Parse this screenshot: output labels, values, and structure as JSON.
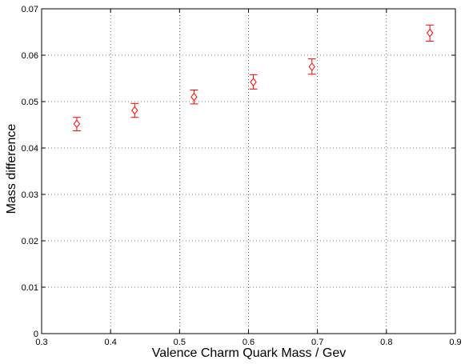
{
  "chart_data": {
    "type": "scatter",
    "title": "",
    "xlabel": "Valence Charm Quark Mass / Gev",
    "ylabel": "Mass difference",
    "xlim": [
      0.3,
      0.9
    ],
    "ylim": [
      0,
      0.07
    ],
    "xticks": [
      0.3,
      0.4,
      0.5,
      0.6,
      0.7,
      0.8,
      0.9
    ],
    "xtick_labels": [
      "0.3",
      "0.4",
      "0.5",
      "0.6",
      "0.7",
      "0.8",
      "0.9"
    ],
    "yticks": [
      0,
      0.01,
      0.02,
      0.03,
      0.04,
      0.05,
      0.06,
      0.07
    ],
    "ytick_labels": [
      "0",
      "0.01",
      "0.02",
      "0.03",
      "0.04",
      "0.05",
      "0.06",
      "0.07"
    ],
    "grid": true,
    "grid_style": "dotted",
    "marker": "diamond",
    "series": [
      {
        "color": "#ff0000",
        "points": [
          {
            "x": 0.351,
            "y": 0.0452,
            "err_low": 0.0437,
            "err_high": 0.0466
          },
          {
            "x": 0.435,
            "y": 0.0481,
            "err_low": 0.0466,
            "err_high": 0.0496
          },
          {
            "x": 0.521,
            "y": 0.051,
            "err_low": 0.0495,
            "err_high": 0.0525
          },
          {
            "x": 0.607,
            "y": 0.0542,
            "err_low": 0.0527,
            "err_high": 0.0558
          },
          {
            "x": 0.692,
            "y": 0.0575,
            "err_low": 0.0559,
            "err_high": 0.0592
          },
          {
            "x": 0.863,
            "y": 0.0648,
            "err_low": 0.063,
            "err_high": 0.0665
          }
        ]
      }
    ]
  }
}
